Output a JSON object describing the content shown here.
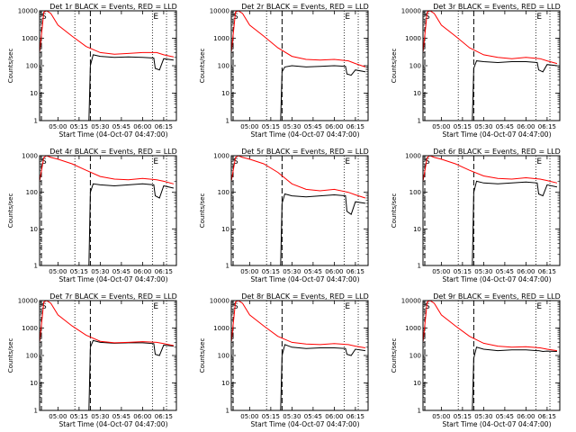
{
  "colors": {
    "events": "#000000",
    "lld": "#ff0000",
    "axis": "#000000",
    "background": "#ffffff"
  },
  "chart_data": [
    {
      "type": "line",
      "title": "Det 1r BLACK = Events, RED = LLD",
      "xlabel": "Start Time (04-Oct-07 04:47:00)",
      "ylabel": "Counts/sec",
      "yscale": "log",
      "ylim": [
        1,
        10000
      ],
      "xlim": [
        "04:47",
        "06:24"
      ],
      "x_ticks": [
        "05:00",
        "05:15",
        "05:30",
        "05:45",
        "06:00",
        "06:15"
      ],
      "y_ticks": [
        "1",
        "10",
        "100",
        "1000",
        "10000"
      ],
      "annotations": [
        "S",
        "E"
      ],
      "vlines_dashed": [
        "04:47",
        "05:23"
      ],
      "vlines_dotted": [
        "05:12",
        "06:07",
        "06:17"
      ],
      "series": [
        {
          "name": "Events",
          "x": [
            "04:47",
            "05:22",
            "05:23",
            "05:25",
            "05:30",
            "05:40",
            "05:50",
            "06:00",
            "06:08",
            "06:09",
            "06:12",
            "06:15",
            "06:22"
          ],
          "y": [
            1,
            1,
            100,
            250,
            220,
            200,
            210,
            200,
            190,
            80,
            70,
            180,
            160
          ]
        },
        {
          "name": "LLD",
          "x": [
            "04:47",
            "04:50",
            "04:52",
            "04:55",
            "05:00",
            "05:10",
            "05:20",
            "05:30",
            "05:40",
            "05:50",
            "06:00",
            "06:10",
            "06:15",
            "06:22"
          ],
          "y": [
            300,
            9000,
            10000,
            8000,
            3000,
            1200,
            500,
            300,
            260,
            280,
            300,
            300,
            250,
            210
          ]
        }
      ]
    },
    {
      "type": "line",
      "title": "Det 2r BLACK = Events, RED = LLD",
      "xlabel": "Start Time (04-Oct-07 04:47:00)",
      "ylabel": "Counts/sec",
      "yscale": "log",
      "ylim": [
        1,
        10000
      ],
      "xlim": [
        "04:47",
        "06:24"
      ],
      "x_ticks": [
        "05:00",
        "05:15",
        "05:30",
        "05:45",
        "06:00",
        "06:15"
      ],
      "y_ticks": [
        "1",
        "10",
        "100",
        "1000",
        "10000"
      ],
      "annotations": [
        "S",
        "E"
      ],
      "vlines_dashed": [
        "04:47",
        "05:23"
      ],
      "vlines_dotted": [
        "05:12",
        "06:07",
        "06:17"
      ],
      "series": [
        {
          "name": "Events",
          "x": [
            "04:47",
            "05:22",
            "05:23",
            "05:25",
            "05:30",
            "05:40",
            "05:50",
            "06:00",
            "06:08",
            "06:09",
            "06:12",
            "06:15",
            "06:22"
          ],
          "y": [
            1,
            1,
            60,
            90,
            100,
            90,
            95,
            100,
            95,
            50,
            45,
            70,
            60
          ]
        },
        {
          "name": "LLD",
          "x": [
            "04:47",
            "04:50",
            "04:52",
            "04:55",
            "05:00",
            "05:10",
            "05:20",
            "05:30",
            "05:40",
            "05:50",
            "06:00",
            "06:10",
            "06:15",
            "06:22"
          ],
          "y": [
            300,
            9000,
            10000,
            8000,
            3000,
            1200,
            450,
            220,
            170,
            160,
            170,
            150,
            120,
            90
          ]
        }
      ]
    },
    {
      "type": "line",
      "title": "Det 3r BLACK = Events, RED = LLD",
      "xlabel": "Start Time (04-Oct-07 04:47:00)",
      "ylabel": "Counts/sec",
      "yscale": "log",
      "ylim": [
        1,
        10000
      ],
      "xlim": [
        "04:47",
        "06:24"
      ],
      "x_ticks": [
        "05:00",
        "05:15",
        "05:30",
        "05:45",
        "06:00",
        "06:15"
      ],
      "y_ticks": [
        "1",
        "10",
        "100",
        "1000",
        "10000"
      ],
      "annotations": [
        "S",
        "E"
      ],
      "vlines_dashed": [
        "04:47",
        "05:23"
      ],
      "vlines_dotted": [
        "05:12",
        "06:07",
        "06:17"
      ],
      "series": [
        {
          "name": "Events",
          "x": [
            "04:47",
            "05:22",
            "05:23",
            "05:25",
            "05:30",
            "05:40",
            "05:50",
            "06:00",
            "06:08",
            "06:09",
            "06:12",
            "06:15",
            "06:22"
          ],
          "y": [
            1,
            1,
            80,
            150,
            140,
            130,
            140,
            140,
            130,
            70,
            60,
            110,
            100
          ]
        },
        {
          "name": "LLD",
          "x": [
            "04:47",
            "04:50",
            "04:52",
            "04:55",
            "05:00",
            "05:10",
            "05:20",
            "05:30",
            "05:40",
            "05:50",
            "06:00",
            "06:10",
            "06:15",
            "06:22"
          ],
          "y": [
            300,
            9000,
            10000,
            8000,
            3000,
            1200,
            450,
            250,
            200,
            180,
            200,
            180,
            150,
            120
          ]
        }
      ]
    },
    {
      "type": "line",
      "title": "Det 4r BLACK = Events, RED = LLD",
      "xlabel": "Start Time (04-Oct-07 04:47:00)",
      "ylabel": "Counts/sec",
      "yscale": "log",
      "ylim": [
        1,
        1000
      ],
      "xlim": [
        "04:47",
        "06:24"
      ],
      "x_ticks": [
        "05:00",
        "05:15",
        "05:30",
        "05:45",
        "06:00",
        "06:15"
      ],
      "y_ticks": [
        "1",
        "10",
        "100",
        "1000"
      ],
      "annotations": [
        "S",
        "E"
      ],
      "vlines_dashed": [
        "04:47",
        "05:23"
      ],
      "vlines_dotted": [
        "05:12",
        "06:07",
        "06:17"
      ],
      "series": [
        {
          "name": "Events",
          "x": [
            "04:47",
            "05:22",
            "05:23",
            "05:25",
            "05:30",
            "05:40",
            "05:50",
            "06:00",
            "06:08",
            "06:09",
            "06:12",
            "06:15",
            "06:22"
          ],
          "y": [
            1,
            1,
            100,
            170,
            160,
            150,
            160,
            170,
            160,
            80,
            70,
            150,
            130
          ]
        },
        {
          "name": "LLD",
          "x": [
            "04:47",
            "04:50",
            "04:52",
            "04:55",
            "05:00",
            "05:10",
            "05:20",
            "05:30",
            "05:40",
            "05:50",
            "06:00",
            "06:10",
            "06:15",
            "06:22"
          ],
          "y": [
            200,
            900,
            1000,
            900,
            800,
            600,
            400,
            270,
            230,
            220,
            240,
            220,
            200,
            170
          ]
        }
      ]
    },
    {
      "type": "line",
      "title": "Det 5r BLACK = Events, RED = LLD",
      "xlabel": "Start Time (04-Oct-07 04:47:00)",
      "ylabel": "Counts/sec",
      "yscale": "log",
      "ylim": [
        1,
        1000
      ],
      "xlim": [
        "04:47",
        "06:24"
      ],
      "x_ticks": [
        "05:00",
        "05:15",
        "05:30",
        "05:45",
        "06:00",
        "06:15"
      ],
      "y_ticks": [
        "1",
        "10",
        "100",
        "1000"
      ],
      "annotations": [
        "S",
        "E"
      ],
      "vlines_dashed": [
        "04:47",
        "05:23"
      ],
      "vlines_dotted": [
        "05:12",
        "06:07",
        "06:17"
      ],
      "series": [
        {
          "name": "Events",
          "x": [
            "04:47",
            "05:22",
            "05:23",
            "05:25",
            "05:30",
            "05:40",
            "05:50",
            "06:00",
            "06:08",
            "06:09",
            "06:12",
            "06:15",
            "06:22"
          ],
          "y": [
            1,
            1,
            50,
            90,
            80,
            75,
            80,
            85,
            80,
            30,
            25,
            55,
            50
          ]
        },
        {
          "name": "LLD",
          "x": [
            "04:47",
            "04:50",
            "04:52",
            "04:55",
            "05:00",
            "05:10",
            "05:20",
            "05:30",
            "05:40",
            "05:50",
            "06:00",
            "06:10",
            "06:15",
            "06:22"
          ],
          "y": [
            200,
            900,
            1000,
            900,
            800,
            600,
            350,
            170,
            120,
            110,
            120,
            100,
            85,
            70
          ]
        }
      ]
    },
    {
      "type": "line",
      "title": "Det 6r BLACK = Events, RED = LLD",
      "xlabel": "Start Time (04-Oct-07 04:47:00)",
      "ylabel": "Counts/sec",
      "yscale": "log",
      "ylim": [
        1,
        1000
      ],
      "xlim": [
        "04:47",
        "06:24"
      ],
      "x_ticks": [
        "05:00",
        "05:15",
        "05:30",
        "05:45",
        "06:00",
        "06:15"
      ],
      "y_ticks": [
        "1",
        "10",
        "100",
        "1000"
      ],
      "annotations": [
        "S",
        "E"
      ],
      "vlines_dashed": [
        "04:47",
        "05:23"
      ],
      "vlines_dotted": [
        "05:12",
        "06:07",
        "06:17"
      ],
      "series": [
        {
          "name": "Events",
          "x": [
            "04:47",
            "05:22",
            "05:23",
            "05:25",
            "05:30",
            "05:40",
            "05:50",
            "06:00",
            "06:08",
            "06:09",
            "06:12",
            "06:15",
            "06:22"
          ],
          "y": [
            1,
            1,
            100,
            200,
            180,
            170,
            180,
            190,
            180,
            90,
            80,
            160,
            140
          ]
        },
        {
          "name": "LLD",
          "x": [
            "04:47",
            "04:50",
            "04:52",
            "04:55",
            "05:00",
            "05:10",
            "05:20",
            "05:30",
            "05:40",
            "05:50",
            "06:00",
            "06:10",
            "06:15",
            "06:22"
          ],
          "y": [
            200,
            900,
            1000,
            900,
            800,
            600,
            400,
            280,
            240,
            230,
            250,
            230,
            210,
            180
          ]
        }
      ]
    },
    {
      "type": "line",
      "title": "Det 7r BLACK = Events, RED = LLD",
      "xlabel": "Start Time (04-Oct-07 04:47:00)",
      "ylabel": "Counts/sec",
      "yscale": "log",
      "ylim": [
        1,
        10000
      ],
      "xlim": [
        "04:47",
        "06:24"
      ],
      "x_ticks": [
        "05:00",
        "05:15",
        "05:30",
        "05:45",
        "06:00",
        "06:15"
      ],
      "y_ticks": [
        "1",
        "10",
        "100",
        "1000",
        "10000"
      ],
      "annotations": [
        "S",
        "E"
      ],
      "vlines_dashed": [
        "04:47",
        "05:23"
      ],
      "vlines_dotted": [
        "05:12",
        "06:07",
        "06:17"
      ],
      "series": [
        {
          "name": "Events",
          "x": [
            "04:47",
            "05:22",
            "05:23",
            "05:25",
            "05:30",
            "05:40",
            "05:50",
            "06:00",
            "06:08",
            "06:09",
            "06:12",
            "06:15",
            "06:22"
          ],
          "y": [
            1,
            1,
            200,
            350,
            300,
            280,
            290,
            290,
            270,
            110,
            100,
            240,
            220
          ]
        },
        {
          "name": "LLD",
          "x": [
            "04:47",
            "04:50",
            "04:52",
            "04:55",
            "05:00",
            "05:10",
            "05:20",
            "05:30",
            "05:40",
            "05:50",
            "06:00",
            "06:10",
            "06:15",
            "06:22"
          ],
          "y": [
            300,
            9000,
            10000,
            8000,
            3000,
            1200,
            550,
            330,
            290,
            300,
            320,
            300,
            270,
            230
          ]
        }
      ]
    },
    {
      "type": "line",
      "title": "Det 8r BLACK = Events, RED = LLD",
      "xlabel": "Start Time (04-Oct-07 04:47:00)",
      "ylabel": "Counts/sec",
      "yscale": "log",
      "ylim": [
        1,
        10000
      ],
      "xlim": [
        "04:47",
        "06:24"
      ],
      "x_ticks": [
        "05:00",
        "05:15",
        "05:30",
        "05:45",
        "06:00",
        "06:15"
      ],
      "y_ticks": [
        "1",
        "10",
        "100",
        "1000",
        "10000"
      ],
      "annotations": [
        "S",
        "E"
      ],
      "vlines_dashed": [
        "04:47",
        "05:23"
      ],
      "vlines_dotted": [
        "05:12",
        "06:07",
        "06:17"
      ],
      "series": [
        {
          "name": "Events",
          "x": [
            "04:47",
            "05:22",
            "05:23",
            "05:25",
            "05:30",
            "05:40",
            "05:50",
            "06:00",
            "06:08",
            "06:09",
            "06:12",
            "06:15",
            "06:22"
          ],
          "y": [
            1,
            1,
            100,
            250,
            200,
            180,
            190,
            190,
            180,
            110,
            100,
            170,
            150
          ]
        },
        {
          "name": "LLD",
          "x": [
            "04:47",
            "04:50",
            "04:52",
            "04:55",
            "05:00",
            "05:10",
            "05:20",
            "05:30",
            "05:40",
            "05:50",
            "06:00",
            "06:10",
            "06:15",
            "06:22"
          ],
          "y": [
            300,
            9000,
            10000,
            8000,
            3000,
            1200,
            500,
            300,
            260,
            250,
            270,
            250,
            220,
            190
          ]
        }
      ]
    },
    {
      "type": "line",
      "title": "Det 9r BLACK = Events, RED = LLD",
      "xlabel": "Start Time (04-Oct-07 04:47:00)",
      "ylabel": "Counts/sec",
      "yscale": "log",
      "ylim": [
        1,
        10000
      ],
      "xlim": [
        "04:47",
        "06:24"
      ],
      "x_ticks": [
        "05:00",
        "05:15",
        "05:30",
        "05:45",
        "06:00",
        "06:15"
      ],
      "y_ticks": [
        "1",
        "10",
        "100",
        "1000",
        "10000"
      ],
      "annotations": [
        "S",
        "E"
      ],
      "vlines_dashed": [
        "04:47",
        "05:23"
      ],
      "vlines_dotted": [
        "05:12",
        "06:07",
        "06:17"
      ],
      "series": [
        {
          "name": "Events",
          "x": [
            "04:47",
            "05:22",
            "05:23",
            "05:25",
            "05:30",
            "05:40",
            "05:50",
            "06:00",
            "06:08",
            "06:09",
            "06:12",
            "06:15",
            "06:22"
          ],
          "y": [
            1,
            1,
            80,
            200,
            170,
            150,
            160,
            160,
            150,
            150,
            140,
            145,
            140
          ]
        },
        {
          "name": "LLD",
          "x": [
            "04:47",
            "04:50",
            "04:52",
            "04:55",
            "05:00",
            "05:10",
            "05:20",
            "05:30",
            "05:40",
            "05:50",
            "06:00",
            "06:10",
            "06:15",
            "06:22"
          ],
          "y": [
            300,
            9000,
            10000,
            8000,
            3000,
            1200,
            500,
            280,
            220,
            200,
            210,
            190,
            170,
            150
          ]
        }
      ]
    }
  ]
}
